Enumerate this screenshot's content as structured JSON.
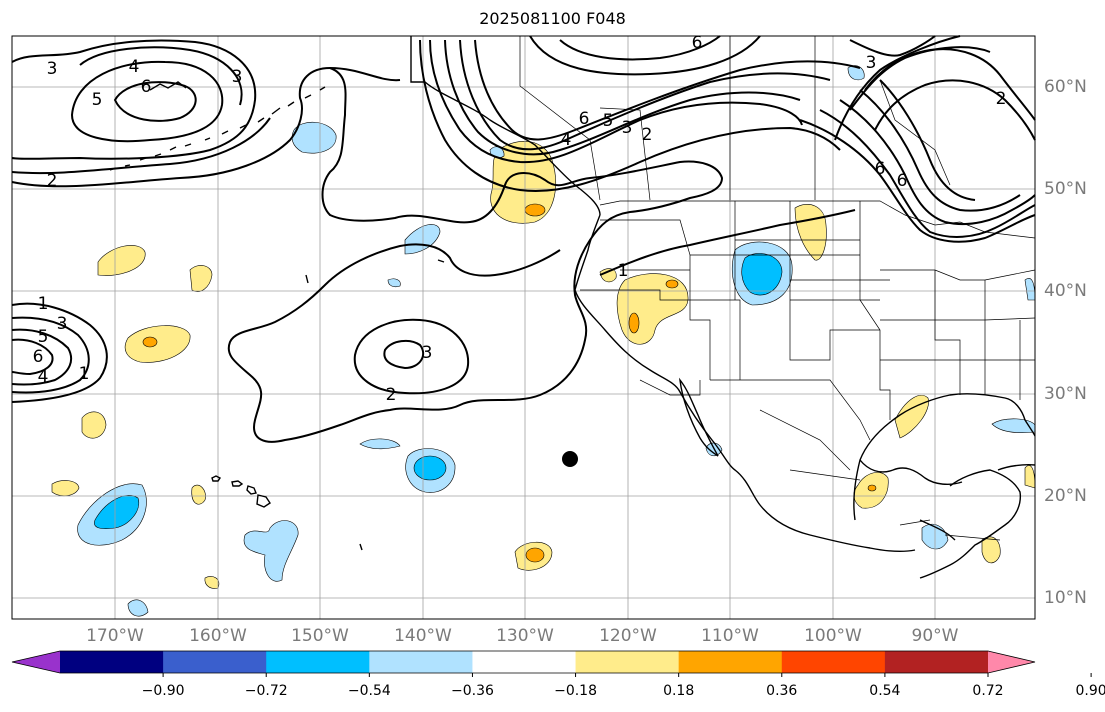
{
  "title": "2025081100 F048",
  "lon_labels": [
    "170°W",
    "160°W",
    "150°W",
    "140°W",
    "130°W",
    "120°W",
    "110°W",
    "100°W",
    "90°W"
  ],
  "lat_labels": [
    "60°N",
    "50°N",
    "40°N",
    "30°N",
    "20°N",
    "10°N"
  ],
  "colorbar": {
    "ticks": [
      "−0.90",
      "−0.72",
      "−0.54",
      "−0.36",
      "−0.18",
      "0.18",
      "0.36",
      "0.54",
      "0.72",
      "0.90"
    ],
    "colors": [
      "#9932cc",
      "#000080",
      "#3a5fcd",
      "#00bfff",
      "#b0e2ff",
      "#ffffff",
      "#ffec8b",
      "#ffa500",
      "#ff4500",
      "#b22222",
      "#ff88aa"
    ]
  },
  "contour_labels": [
    {
      "text": "3"
    },
    {
      "text": "4"
    },
    {
      "text": "5"
    },
    {
      "text": "6"
    },
    {
      "text": "3"
    },
    {
      "text": "2"
    },
    {
      "text": "6"
    },
    {
      "text": "5"
    },
    {
      "text": "3"
    },
    {
      "text": "2"
    },
    {
      "text": "4"
    },
    {
      "text": "6"
    },
    {
      "text": "3"
    },
    {
      "text": "2"
    },
    {
      "text": "6"
    },
    {
      "text": "6"
    },
    {
      "text": "1"
    },
    {
      "text": "3"
    },
    {
      "text": "5"
    },
    {
      "text": "6"
    },
    {
      "text": "4"
    },
    {
      "text": "1"
    },
    {
      "text": "3"
    },
    {
      "text": "2"
    },
    {
      "text": "1"
    }
  ],
  "marker": {
    "name": "black-dot"
  },
  "colors": {
    "land_line": "#000000",
    "grid": "#a0a0a0",
    "contour": "#000000"
  }
}
